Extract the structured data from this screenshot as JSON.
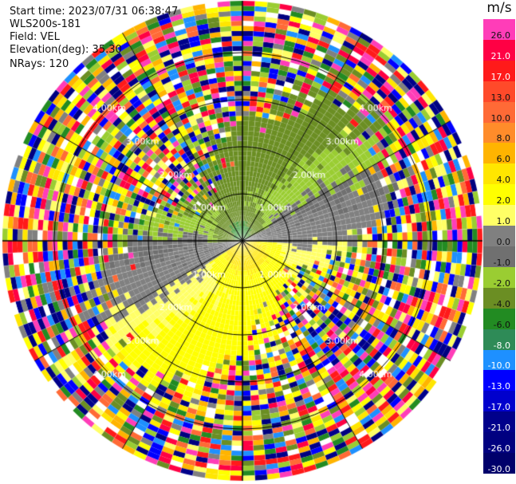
{
  "header": {
    "start_time": "Start time: 2023/07/31 06:38:47",
    "instrument": "WLS200s-181",
    "field": "Field: VEL",
    "elevation": "Elevation(deg): 35.30",
    "nrays": "NRays: 120"
  },
  "radar": {
    "range_labels": [
      "1.00km",
      "2.00km",
      "3.00km",
      "4.00km"
    ],
    "range_rings_km": [
      1,
      2,
      3,
      4
    ],
    "max_range_km": 5.1,
    "nrays": 120,
    "nbins": 48
  },
  "colorbar": {
    "unit": "m/s",
    "ticks": [
      "26.0",
      "21.0",
      "17.0",
      "13.0",
      "10.0",
      "8.0",
      "6.0",
      "4.0",
      "2.0",
      "1.0",
      "0.0",
      "-1.0",
      "-2.0",
      "-4.0",
      "-6.0",
      "-8.0",
      "-10.0",
      "-13.0",
      "-17.0",
      "-21.0",
      "-26.0",
      "-30.0"
    ],
    "colors": [
      "#ff3db8",
      "#ff0044",
      "#ff1a1a",
      "#ff4a2a",
      "#ff6a36",
      "#ff8c2a",
      "#ffb400",
      "#ffe600",
      "#ffff00",
      "#ffff66",
      "#808080",
      "#707070",
      "#9acd32",
      "#6b8e23",
      "#228b22",
      "#2e8b57",
      "#1e90ff",
      "#0000ff",
      "#0000cd",
      "#00008b",
      "#000080",
      "#00006b"
    ]
  }
}
